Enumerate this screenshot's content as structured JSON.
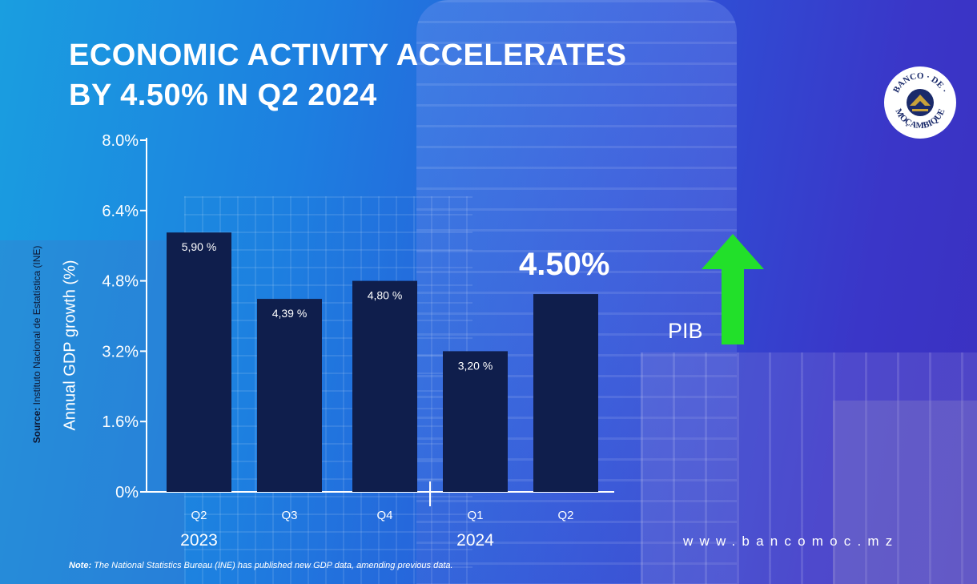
{
  "header": {
    "title_line1": "ECONOMIC ACTIVITY ACCELERATES",
    "title_line2": "BY 4.50% IN Q2 2024"
  },
  "logo": {
    "text": "BANCO DE MOÇAMBIQUE"
  },
  "chart_data": {
    "type": "bar",
    "title": "ECONOMIC ACTIVITY ACCELERATES BY 4.50% IN Q2 2024",
    "ylabel": "Annual GDP growth (%)",
    "ylim": [
      0,
      8.0
    ],
    "yticks": [
      "0%",
      "1.6%",
      "3.2%",
      "4.8%",
      "6.4%",
      "8.0%"
    ],
    "ytick_values": [
      0,
      1.6,
      3.2,
      4.8,
      6.4,
      8.0
    ],
    "categories": [
      "Q2",
      "Q3",
      "Q4",
      "Q1",
      "Q2"
    ],
    "years": [
      {
        "label": "2023",
        "span": [
          0,
          2
        ]
      },
      {
        "label": "2024",
        "span": [
          3,
          4
        ]
      }
    ],
    "values": [
      5.9,
      4.39,
      4.8,
      3.2,
      4.5
    ],
    "data_labels": [
      "5,90 %",
      "4,39 %",
      "4,80 %",
      "3,20 %",
      ""
    ],
    "bar_color": "#0f1e4c",
    "grid": false
  },
  "highlight": {
    "value": "4.50%",
    "indicator": "PIB",
    "arrow_color": "#22e02a"
  },
  "source": {
    "label": "Source:",
    "text": " Instituto Nacional de Estatística (INE)"
  },
  "website": "www.bancomoc.mz",
  "note": {
    "label": "Note:",
    "text": " The National Statistics Bureau (INE) has published new GDP data, amending previous data."
  }
}
